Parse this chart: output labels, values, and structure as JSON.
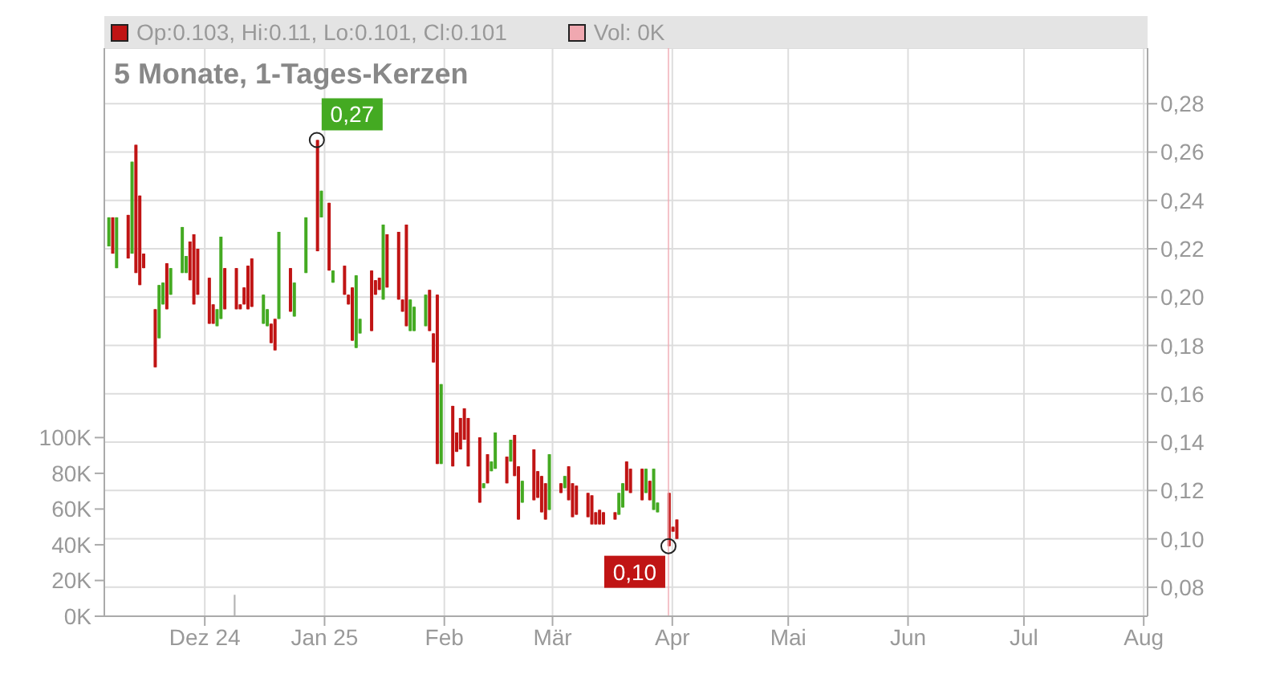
{
  "chart_data": {
    "type": "candlestick",
    "title": "5 Monate, 1-Tages-Kerzen",
    "annotations": [
      "Op:0.103, Hi:0.11, Lo:0.101, Cl:0.101",
      "Vol: 0K",
      {
        "text": "0,27",
        "x": "2024-12-30",
        "y": 0.265
      },
      {
        "text": "0,10",
        "x": "2025-03-31",
        "y": 0.097
      }
    ],
    "x": [
      "2024-11-06",
      "2024-11-07",
      "2024-11-08",
      "2024-11-11",
      "2024-11-12",
      "2024-11-13",
      "2024-11-14",
      "2024-11-15",
      "2024-11-18",
      "2024-11-19",
      "2024-11-20",
      "2024-11-21",
      "2024-11-22",
      "2024-11-25",
      "2024-11-26",
      "2024-11-27",
      "2024-11-28",
      "2024-11-29",
      "2024-12-02",
      "2024-12-03",
      "2024-12-04",
      "2024-12-05",
      "2024-12-06",
      "2024-12-09",
      "2024-12-10",
      "2024-12-11",
      "2024-12-12",
      "2024-12-13",
      "2024-12-16",
      "2024-12-17",
      "2024-12-18",
      "2024-12-19",
      "2024-12-20",
      "2024-12-23",
      "2024-12-24",
      "2024-12-27",
      "2024-12-30",
      "2024-12-31",
      "2025-01-02",
      "2025-01-03",
      "2025-01-06",
      "2025-01-07",
      "2025-01-08",
      "2025-01-09",
      "2025-01-10",
      "2025-01-13",
      "2025-01-14",
      "2025-01-15",
      "2025-01-16",
      "2025-01-17",
      "2025-01-20",
      "2025-01-21",
      "2025-01-22",
      "2025-01-23",
      "2025-01-24",
      "2025-01-27",
      "2025-01-28",
      "2025-01-29",
      "2025-01-30",
      "2025-01-31",
      "2025-02-03",
      "2025-02-04",
      "2025-02-05",
      "2025-02-06",
      "2025-02-07",
      "2025-02-10",
      "2025-02-11",
      "2025-02-12",
      "2025-02-13",
      "2025-02-14",
      "2025-02-17",
      "2025-02-18",
      "2025-02-19",
      "2025-02-20",
      "2025-02-21",
      "2025-02-24",
      "2025-02-25",
      "2025-02-26",
      "2025-02-27",
      "2025-02-28",
      "2025-03-03",
      "2025-03-04",
      "2025-03-05",
      "2025-03-06",
      "2025-03-07",
      "2025-03-10",
      "2025-03-11",
      "2025-03-12",
      "2025-03-13",
      "2025-03-14",
      "2025-03-17",
      "2025-03-18",
      "2025-03-19",
      "2025-03-20",
      "2025-03-21",
      "2025-03-24",
      "2025-03-25",
      "2025-03-26",
      "2025-03-27",
      "2025-03-28",
      "2025-03-31",
      "2025-04-01",
      "2025-04-02"
    ],
    "ohlc": [
      [
        0.221,
        0.233,
        0.221,
        0.233
      ],
      [
        0.233,
        0.233,
        0.218,
        0.218
      ],
      [
        0.212,
        0.233,
        0.212,
        0.233
      ],
      [
        0.234,
        0.234,
        0.216,
        0.216
      ],
      [
        0.218,
        0.256,
        0.218,
        0.256
      ],
      [
        0.263,
        0.263,
        0.21,
        0.21
      ],
      [
        0.242,
        0.242,
        0.205,
        0.205
      ],
      [
        0.218,
        0.218,
        0.212,
        0.212
      ],
      [
        0.195,
        0.195,
        0.171,
        0.171
      ],
      [
        0.183,
        0.205,
        0.183,
        0.205
      ],
      [
        0.197,
        0.206,
        0.197,
        0.206
      ],
      [
        0.214,
        0.214,
        0.195,
        0.195
      ],
      [
        0.201,
        0.212,
        0.201,
        0.212
      ],
      [
        0.21,
        0.229,
        0.21,
        0.229
      ],
      [
        0.21,
        0.217,
        0.21,
        0.217
      ],
      [
        0.223,
        0.223,
        0.207,
        0.207
      ],
      [
        0.226,
        0.226,
        0.197,
        0.197
      ],
      [
        0.22,
        0.22,
        0.201,
        0.201
      ],
      [
        0.208,
        0.208,
        0.189,
        0.189
      ],
      [
        0.197,
        0.197,
        0.189,
        0.189
      ],
      [
        0.188,
        0.195,
        0.188,
        0.195
      ],
      [
        0.191,
        0.225,
        0.191,
        0.225
      ],
      [
        0.212,
        0.212,
        0.195,
        0.195
      ],
      [
        0.212,
        0.212,
        0.195,
        0.195
      ],
      [
        0.197,
        0.197,
        0.195,
        0.195
      ],
      [
        0.204,
        0.204,
        0.197,
        0.197
      ],
      [
        0.213,
        0.213,
        0.195,
        0.195
      ],
      [
        0.216,
        0.216,
        0.196,
        0.196
      ],
      [
        0.189,
        0.201,
        0.189,
        0.201
      ],
      [
        0.188,
        0.195,
        0.188,
        0.195
      ],
      [
        0.189,
        0.189,
        0.181,
        0.181
      ],
      [
        0.191,
        0.191,
        0.178,
        0.178
      ],
      [
        0.191,
        0.227,
        0.191,
        0.227
      ],
      [
        0.212,
        0.212,
        0.194,
        0.194
      ],
      [
        0.192,
        0.206,
        0.192,
        0.206
      ],
      [
        0.21,
        0.233,
        0.21,
        0.233
      ],
      [
        0.265,
        0.265,
        0.219,
        0.219
      ],
      [
        0.233,
        0.244,
        0.233,
        0.244
      ],
      [
        0.239,
        0.239,
        0.211,
        0.211
      ],
      [
        0.206,
        0.211,
        0.206,
        0.211
      ],
      [
        0.213,
        0.213,
        0.201,
        0.201
      ],
      [
        0.201,
        0.201,
        0.197,
        0.197
      ],
      [
        0.204,
        0.204,
        0.182,
        0.182
      ],
      [
        0.179,
        0.209,
        0.179,
        0.209
      ],
      [
        0.185,
        0.191,
        0.185,
        0.191
      ],
      [
        0.211,
        0.211,
        0.186,
        0.186
      ],
      [
        0.207,
        0.207,
        0.201,
        0.201
      ],
      [
        0.208,
        0.208,
        0.203,
        0.203
      ],
      [
        0.199,
        0.23,
        0.199,
        0.23
      ],
      [
        0.226,
        0.226,
        0.204,
        0.204
      ],
      [
        0.227,
        0.227,
        0.199,
        0.199
      ],
      [
        0.199,
        0.199,
        0.194,
        0.194
      ],
      [
        0.23,
        0.23,
        0.188,
        0.188
      ],
      [
        0.186,
        0.199,
        0.186,
        0.199
      ],
      [
        0.186,
        0.196,
        0.186,
        0.196
      ],
      [
        0.188,
        0.201,
        0.188,
        0.201
      ],
      [
        0.203,
        0.203,
        0.186,
        0.186
      ],
      [
        0.185,
        0.185,
        0.173,
        0.173
      ],
      [
        0.201,
        0.201,
        0.131,
        0.131
      ],
      [
        0.131,
        0.164,
        0.131,
        0.164
      ],
      [
        0.155,
        0.155,
        0.13,
        0.13
      ],
      [
        0.144,
        0.144,
        0.136,
        0.136
      ],
      [
        0.15,
        0.15,
        0.137,
        0.137
      ],
      [
        0.154,
        0.154,
        0.141,
        0.141
      ],
      [
        0.15,
        0.15,
        0.13,
        0.13
      ],
      [
        0.142,
        0.142,
        0.115,
        0.115
      ],
      [
        0.121,
        0.123,
        0.121,
        0.123
      ],
      [
        0.135,
        0.135,
        0.123,
        0.123
      ],
      [
        0.128,
        0.132,
        0.128,
        0.132
      ],
      [
        0.129,
        0.144,
        0.129,
        0.144
      ],
      [
        0.134,
        0.134,
        0.123,
        0.123
      ],
      [
        0.132,
        0.141,
        0.132,
        0.141
      ],
      [
        0.143,
        0.143,
        0.126,
        0.126
      ],
      [
        0.13,
        0.13,
        0.108,
        0.108
      ],
      [
        0.115,
        0.124,
        0.115,
        0.124
      ],
      [
        0.137,
        0.137,
        0.116,
        0.116
      ],
      [
        0.128,
        0.128,
        0.117,
        0.117
      ],
      [
        0.126,
        0.126,
        0.111,
        0.111
      ],
      [
        0.123,
        0.123,
        0.108,
        0.108
      ],
      [
        0.112,
        0.135,
        0.112,
        0.135
      ],
      [
        0.123,
        0.123,
        0.119,
        0.119
      ],
      [
        0.121,
        0.126,
        0.121,
        0.126
      ],
      [
        0.13,
        0.13,
        0.116,
        0.116
      ],
      [
        0.123,
        0.123,
        0.109,
        0.109
      ],
      [
        0.122,
        0.122,
        0.11,
        0.11
      ],
      [
        0.119,
        0.119,
        0.109,
        0.109
      ],
      [
        0.118,
        0.118,
        0.106,
        0.106
      ],
      [
        0.111,
        0.111,
        0.106,
        0.106
      ],
      [
        0.112,
        0.112,
        0.106,
        0.106
      ],
      [
        0.111,
        0.111,
        0.106,
        0.106
      ],
      [
        0.111,
        0.111,
        0.108,
        0.108
      ],
      [
        0.11,
        0.119,
        0.11,
        0.119
      ],
      [
        0.113,
        0.123,
        0.113,
        0.123
      ],
      [
        0.132,
        0.132,
        0.12,
        0.12
      ],
      [
        0.129,
        0.129,
        0.119,
        0.119
      ],
      [
        0.129,
        0.129,
        0.116,
        0.116
      ],
      [
        0.119,
        0.129,
        0.119,
        0.129
      ],
      [
        0.124,
        0.124,
        0.116,
        0.116
      ],
      [
        0.112,
        0.129,
        0.112,
        0.129
      ],
      [
        0.111,
        0.115,
        0.111,
        0.115
      ],
      [
        0.119,
        0.119,
        0.097,
        0.097
      ],
      [
        0.105,
        0.105,
        0.103,
        0.103
      ],
      [
        0.108,
        0.108,
        0.1,
        0.1
      ]
    ],
    "colors": [
      "#44aa22",
      "#c01414",
      "#44aa22",
      "#c01414",
      "#44aa22",
      "#c01414",
      "#c01414",
      "#c01414",
      "#c01414",
      "#44aa22",
      "#44aa22",
      "#c01414",
      "#44aa22",
      "#44aa22",
      "#44aa22",
      "#c01414",
      "#c01414",
      "#c01414",
      "#c01414",
      "#c01414",
      "#44aa22",
      "#44aa22",
      "#c01414",
      "#c01414",
      "#c01414",
      "#c01414",
      "#c01414",
      "#c01414",
      "#44aa22",
      "#44aa22",
      "#c01414",
      "#c01414",
      "#44aa22",
      "#c01414",
      "#44aa22",
      "#44aa22",
      "#c01414",
      "#44aa22",
      "#c01414",
      "#44aa22",
      "#c01414",
      "#c01414",
      "#c01414",
      "#44aa22",
      "#44aa22",
      "#c01414",
      "#c01414",
      "#c01414",
      "#44aa22",
      "#c01414",
      "#c01414",
      "#c01414",
      "#c01414",
      "#44aa22",
      "#44aa22",
      "#44aa22",
      "#c01414",
      "#c01414",
      "#c01414",
      "#44aa22",
      "#c01414",
      "#c01414",
      "#c01414",
      "#c01414",
      "#c01414",
      "#c01414",
      "#44aa22",
      "#c01414",
      "#44aa22",
      "#44aa22",
      "#c01414",
      "#44aa22",
      "#c01414",
      "#c01414",
      "#44aa22",
      "#c01414",
      "#c01414",
      "#c01414",
      "#c01414",
      "#44aa22",
      "#c01414",
      "#44aa22",
      "#c01414",
      "#c01414",
      "#c01414",
      "#c01414",
      "#c01414",
      "#c01414",
      "#c01414",
      "#c01414",
      "#c01414",
      "#44aa22",
      "#44aa22",
      "#c01414",
      "#c01414",
      "#c01414",
      "#44aa22",
      "#c01414",
      "#44aa22",
      "#44aa22",
      "#c01414",
      "#c01414",
      "#c01414"
    ],
    "series": [
      {
        "type": "bar",
        "axis": "y2",
        "x": [
          "2024-12-09"
        ],
        "values": [
          12000
        ],
        "color": "#b4b4b4"
      }
    ],
    "xlim": [
      "2024-11-05",
      "2025-08-02"
    ],
    "xticks": [
      {
        "value": "2024-12-01",
        "label": "Dez 24"
      },
      {
        "value": "2025-01-01",
        "label": "Jan 25"
      },
      {
        "value": "2025-02-01",
        "label": "Feb"
      },
      {
        "value": "2025-03-01",
        "label": "Mär"
      },
      {
        "value": "2025-04-01",
        "label": "Apr"
      },
      {
        "value": "2025-05-01",
        "label": "Mai"
      },
      {
        "value": "2025-06-01",
        "label": "Jun"
      },
      {
        "value": "2025-07-01",
        "label": "Jul"
      },
      {
        "value": "2025-08-01",
        "label": "Aug"
      }
    ],
    "ylim": [
      0.068,
      0.303
    ],
    "yticks": [
      {
        "value": 0.08,
        "label": "0,08"
      },
      {
        "value": 0.1,
        "label": "0,10"
      },
      {
        "value": 0.12,
        "label": "0,12"
      },
      {
        "value": 0.14,
        "label": "0,14"
      },
      {
        "value": 0.16,
        "label": "0,16"
      },
      {
        "value": 0.18,
        "label": "0,18"
      },
      {
        "value": 0.2,
        "label": "0,20"
      },
      {
        "value": 0.22,
        "label": "0,22"
      },
      {
        "value": 0.24,
        "label": "0,24"
      },
      {
        "value": 0.26,
        "label": "0,26"
      },
      {
        "value": 0.28,
        "label": "0,28"
      }
    ],
    "y2lim": [
      0,
      318000
    ],
    "y2ticks": [
      {
        "value": 0,
        "label": "0K"
      },
      {
        "value": 20000,
        "label": "20K"
      },
      {
        "value": 40000,
        "label": "40K"
      },
      {
        "value": 60000,
        "label": "60K"
      },
      {
        "value": 80000,
        "label": "80K"
      },
      {
        "value": 100000,
        "label": "100K"
      }
    ],
    "ref_lines": [
      {
        "axis": "x",
        "value": "2025-03-31",
        "color": "#f0a8b0"
      }
    ],
    "grid": true
  }
}
